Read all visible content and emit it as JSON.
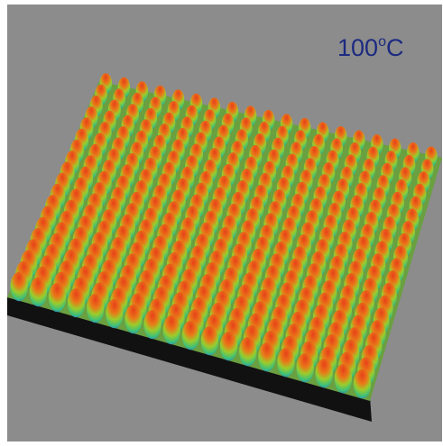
{
  "label": {
    "number": "100",
    "superscript": "o",
    "unit": "C"
  }
}
